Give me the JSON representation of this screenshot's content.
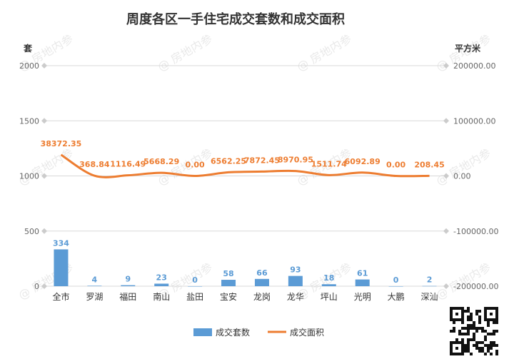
{
  "chart_data": {
    "type": "bar",
    "title": "周度各区一手住宅成交套数和成交面积",
    "categories": [
      "全市",
      "罗湖",
      "福田",
      "南山",
      "盐田",
      "宝安",
      "龙岗",
      "龙华",
      "坪山",
      "光明",
      "大鹏",
      "深汕"
    ],
    "series": [
      {
        "name": "成交套数",
        "type": "bar",
        "axis": "left",
        "color": "#5b9bd5",
        "values": [
          334,
          4,
          9,
          23,
          0,
          58,
          66,
          93,
          18,
          61,
          0,
          2
        ],
        "labels": [
          "334",
          "4",
          "9",
          "23",
          "0",
          "58",
          "66",
          "93",
          "18",
          "61",
          "0",
          "2"
        ]
      },
      {
        "name": "成交面积",
        "type": "line",
        "axis": "right",
        "color": "#ed7d31",
        "values": [
          38372.35,
          368.84,
          1116.49,
          5668.29,
          0.0,
          6562.25,
          7872.45,
          8970.95,
          1511.74,
          6092.89,
          0.0,
          208.45
        ],
        "labels": [
          "38372.35",
          "368.84",
          "1116.49",
          "5668.29",
          "0.00",
          "6562.25",
          "7872.45",
          "8970.95",
          "1511.74",
          "6092.89",
          "0.00",
          "208.45"
        ]
      }
    ],
    "ylabel": "套",
    "y2label": "平方米",
    "ylim": [
      0,
      2000
    ],
    "y2lim": [
      -200000,
      200000
    ],
    "yticks": [
      "2000",
      "1500",
      "1000",
      "500",
      "0"
    ],
    "y2ticks": [
      "200000.00",
      "100000.00",
      "0.00",
      "-100000.00",
      "-200000.00"
    ],
    "grid": true,
    "legend_position": "bottom"
  },
  "watermark": "@ 房地内参"
}
